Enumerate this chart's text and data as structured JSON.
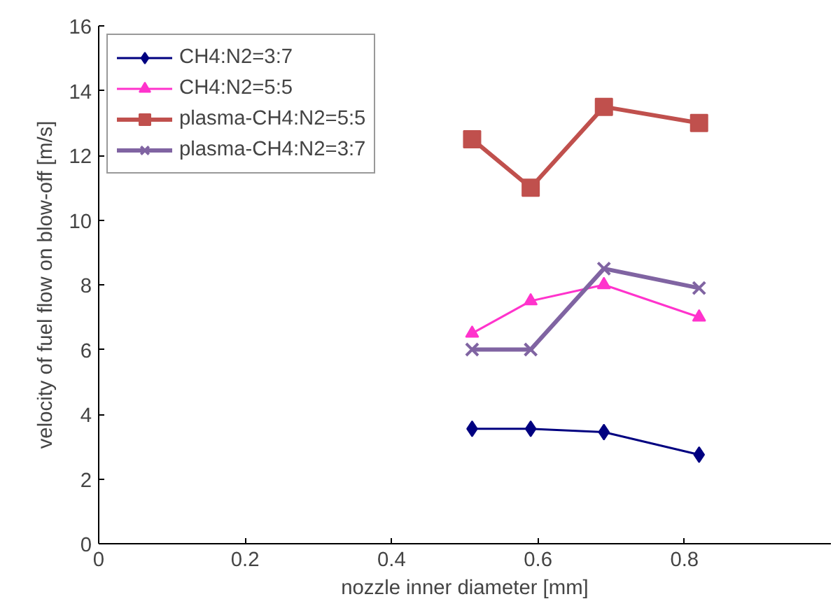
{
  "chart_data": {
    "type": "line",
    "xlabel": "nozzle inner diameter [mm]",
    "ylabel": "velocity of fuel flow on blow-off [m/s]",
    "x": [
      0.51,
      0.59,
      0.69,
      0.82
    ],
    "series": [
      {
        "name": "CH4:N2=3:7",
        "color": "#000080",
        "values": [
          3.55,
          3.55,
          3.45,
          2.75
        ],
        "marker": "diamond"
      },
      {
        "name": "CH4:N2=5:5",
        "color": "#ff33cc",
        "values": [
          6.5,
          7.5,
          8.0,
          7.0
        ],
        "marker": "triangle"
      },
      {
        "name": "plasma-CH4:N2=5:5",
        "color": "#c0504d",
        "values": [
          12.5,
          11.0,
          13.5,
          13.0
        ],
        "marker": "square"
      },
      {
        "name": "plasma-CH4:N2=3:7",
        "color": "#8064a2",
        "values": [
          6.0,
          6.0,
          8.5,
          7.9
        ],
        "marker": "cross"
      }
    ],
    "xlim": [
      0,
      1
    ],
    "xticks": [
      0,
      0.2,
      0.4,
      0.6,
      0.8
    ],
    "ylim": [
      0,
      16
    ],
    "yticks": [
      0,
      2,
      4,
      6,
      8,
      10,
      12,
      14,
      16
    ],
    "grid": false,
    "legend": "top left",
    "line_style": "solid"
  }
}
